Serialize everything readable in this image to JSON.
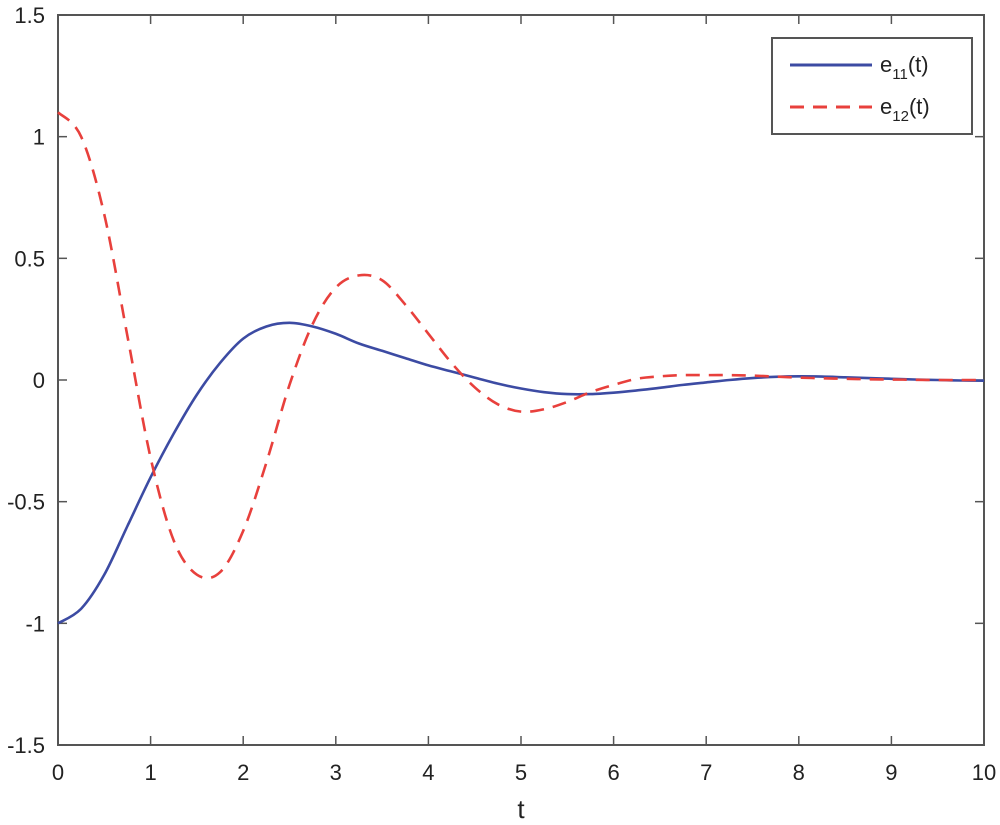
{
  "chart_data": {
    "type": "line",
    "title": "",
    "xlabel": "t",
    "ylabel": "",
    "xlim": [
      0,
      10
    ],
    "ylim": [
      -1.5,
      1.5
    ],
    "x_ticks": [
      0,
      1,
      2,
      3,
      4,
      5,
      6,
      7,
      8,
      9,
      10
    ],
    "y_ticks": [
      -1.5,
      -1,
      -0.5,
      0,
      0.5,
      1,
      1.5
    ],
    "x_tick_labels": [
      "0",
      "1",
      "2",
      "3",
      "4",
      "5",
      "6",
      "7",
      "8",
      "9",
      "10"
    ],
    "y_tick_labels": [
      "-1.5",
      "-1",
      "-0.5",
      "0",
      "0.5",
      "1",
      "1.5"
    ],
    "grid": false,
    "legend_position": "top-right",
    "x": [
      0,
      0.25,
      0.5,
      0.75,
      1,
      1.25,
      1.5,
      1.75,
      2,
      2.25,
      2.5,
      2.75,
      3,
      3.25,
      3.5,
      3.75,
      4,
      4.25,
      4.5,
      4.75,
      5,
      5.25,
      5.5,
      5.75,
      6,
      6.25,
      6.5,
      6.75,
      7,
      7.25,
      7.5,
      7.75,
      8,
      8.25,
      8.5,
      8.75,
      9,
      9.25,
      9.5,
      9.75,
      10
    ],
    "series": [
      {
        "label_main": "e",
        "label_sub": "11",
        "label_tail": "(t)",
        "color": "#3c4ba3",
        "dash": "solid",
        "values": [
          -1.0,
          -0.94,
          -0.8,
          -0.6,
          -0.4,
          -0.22,
          -0.06,
          0.07,
          0.17,
          0.22,
          0.235,
          0.22,
          0.19,
          0.15,
          0.12,
          0.09,
          0.06,
          0.035,
          0.01,
          -0.015,
          -0.035,
          -0.05,
          -0.058,
          -0.058,
          -0.052,
          -0.043,
          -0.032,
          -0.02,
          -0.01,
          0.0,
          0.008,
          0.013,
          0.015,
          0.014,
          0.011,
          0.008,
          0.005,
          0.002,
          0.0,
          -0.002,
          -0.003
        ]
      },
      {
        "label_main": "e",
        "label_sub": "12",
        "label_tail": "(t)",
        "color": "#e8403c",
        "dash": "dashed",
        "values": [
          1.1,
          1.0,
          0.68,
          0.18,
          -0.32,
          -0.66,
          -0.8,
          -0.79,
          -0.62,
          -0.34,
          -0.02,
          0.23,
          0.38,
          0.43,
          0.41,
          0.31,
          0.19,
          0.07,
          -0.03,
          -0.1,
          -0.13,
          -0.12,
          -0.09,
          -0.05,
          -0.02,
          0.005,
          0.015,
          0.02,
          0.02,
          0.02,
          0.018,
          0.014,
          0.01,
          0.007,
          0.005,
          0.003,
          0.002,
          0.001,
          0.0,
          0.0,
          0.0
        ]
      }
    ]
  }
}
